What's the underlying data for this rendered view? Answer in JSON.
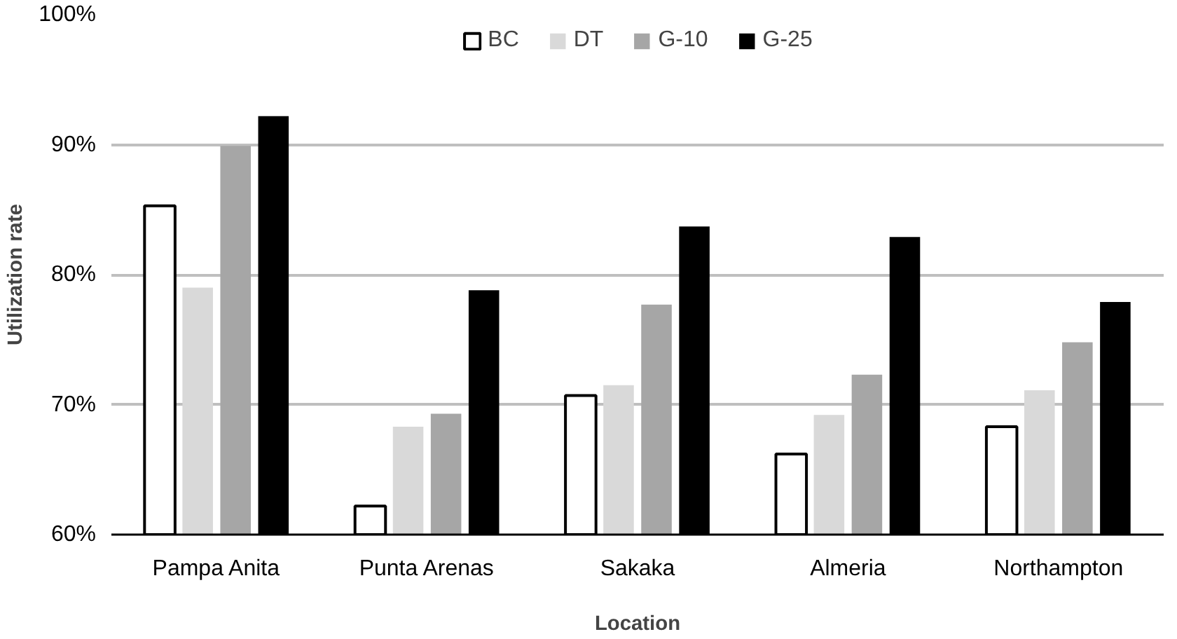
{
  "chart_data": {
    "type": "bar",
    "xlabel": "Location",
    "ylabel": "Utilization rate",
    "categories": [
      "Pampa Anita",
      "Punta Arenas",
      "Sakaka",
      "Almeria",
      "Northampton"
    ],
    "series": [
      {
        "name": "BC",
        "color": "#ffffff",
        "values": [
          85.3,
          62.2,
          70.7,
          66.2,
          68.3
        ]
      },
      {
        "name": "DT",
        "color": "#d9d9d9",
        "values": [
          79.0,
          68.3,
          71.5,
          69.2,
          71.1
        ]
      },
      {
        "name": "G-10",
        "color": "#a6a6a6",
        "values": [
          89.9,
          69.3,
          77.7,
          72.3,
          74.8
        ]
      },
      {
        "name": "G-25",
        "color": "#000000",
        "values": [
          92.2,
          78.8,
          83.7,
          82.9,
          77.9
        ]
      }
    ],
    "ylim": [
      60,
      100
    ],
    "yticks": [
      {
        "value": 60,
        "label": "60%"
      },
      {
        "value": 70,
        "label": "70%"
      },
      {
        "value": 80,
        "label": "80%"
      },
      {
        "value": 90,
        "label": "90%"
      },
      {
        "value": 100,
        "label": "100%"
      }
    ],
    "grid": "y",
    "legend": "top"
  }
}
